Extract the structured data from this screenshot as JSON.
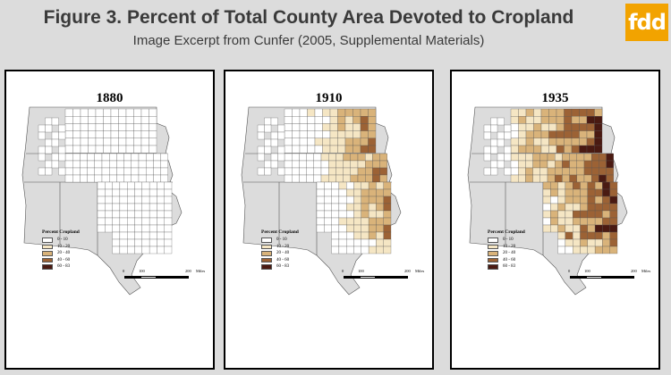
{
  "figure": {
    "title": "Figure 3. Percent of Total County Area Devoted to Cropland",
    "subtitle": "Image Excerpt from Cunfer (2005, Supplemental Materials)"
  },
  "logo": {
    "text": "fdd",
    "color": "#f2a300"
  },
  "legend": {
    "title": "Percent Cropland",
    "classes": [
      {
        "label": "0 - 10",
        "color": "#ffffff"
      },
      {
        "label": "10 - 20",
        "color": "#f5e6c4"
      },
      {
        "label": "20 - 40",
        "color": "#d9b37a"
      },
      {
        "label": "40 - 60",
        "color": "#9c6235"
      },
      {
        "label": "60 - 83",
        "color": "#4a1a12"
      }
    ]
  },
  "scale": {
    "ticks": [
      "0",
      "100",
      "200"
    ],
    "unit": "Miles"
  },
  "maps": [
    {
      "year": "1880",
      "level": 0
    },
    {
      "year": "1910",
      "level": 1
    },
    {
      "year": "1935",
      "level": 2
    }
  ]
}
